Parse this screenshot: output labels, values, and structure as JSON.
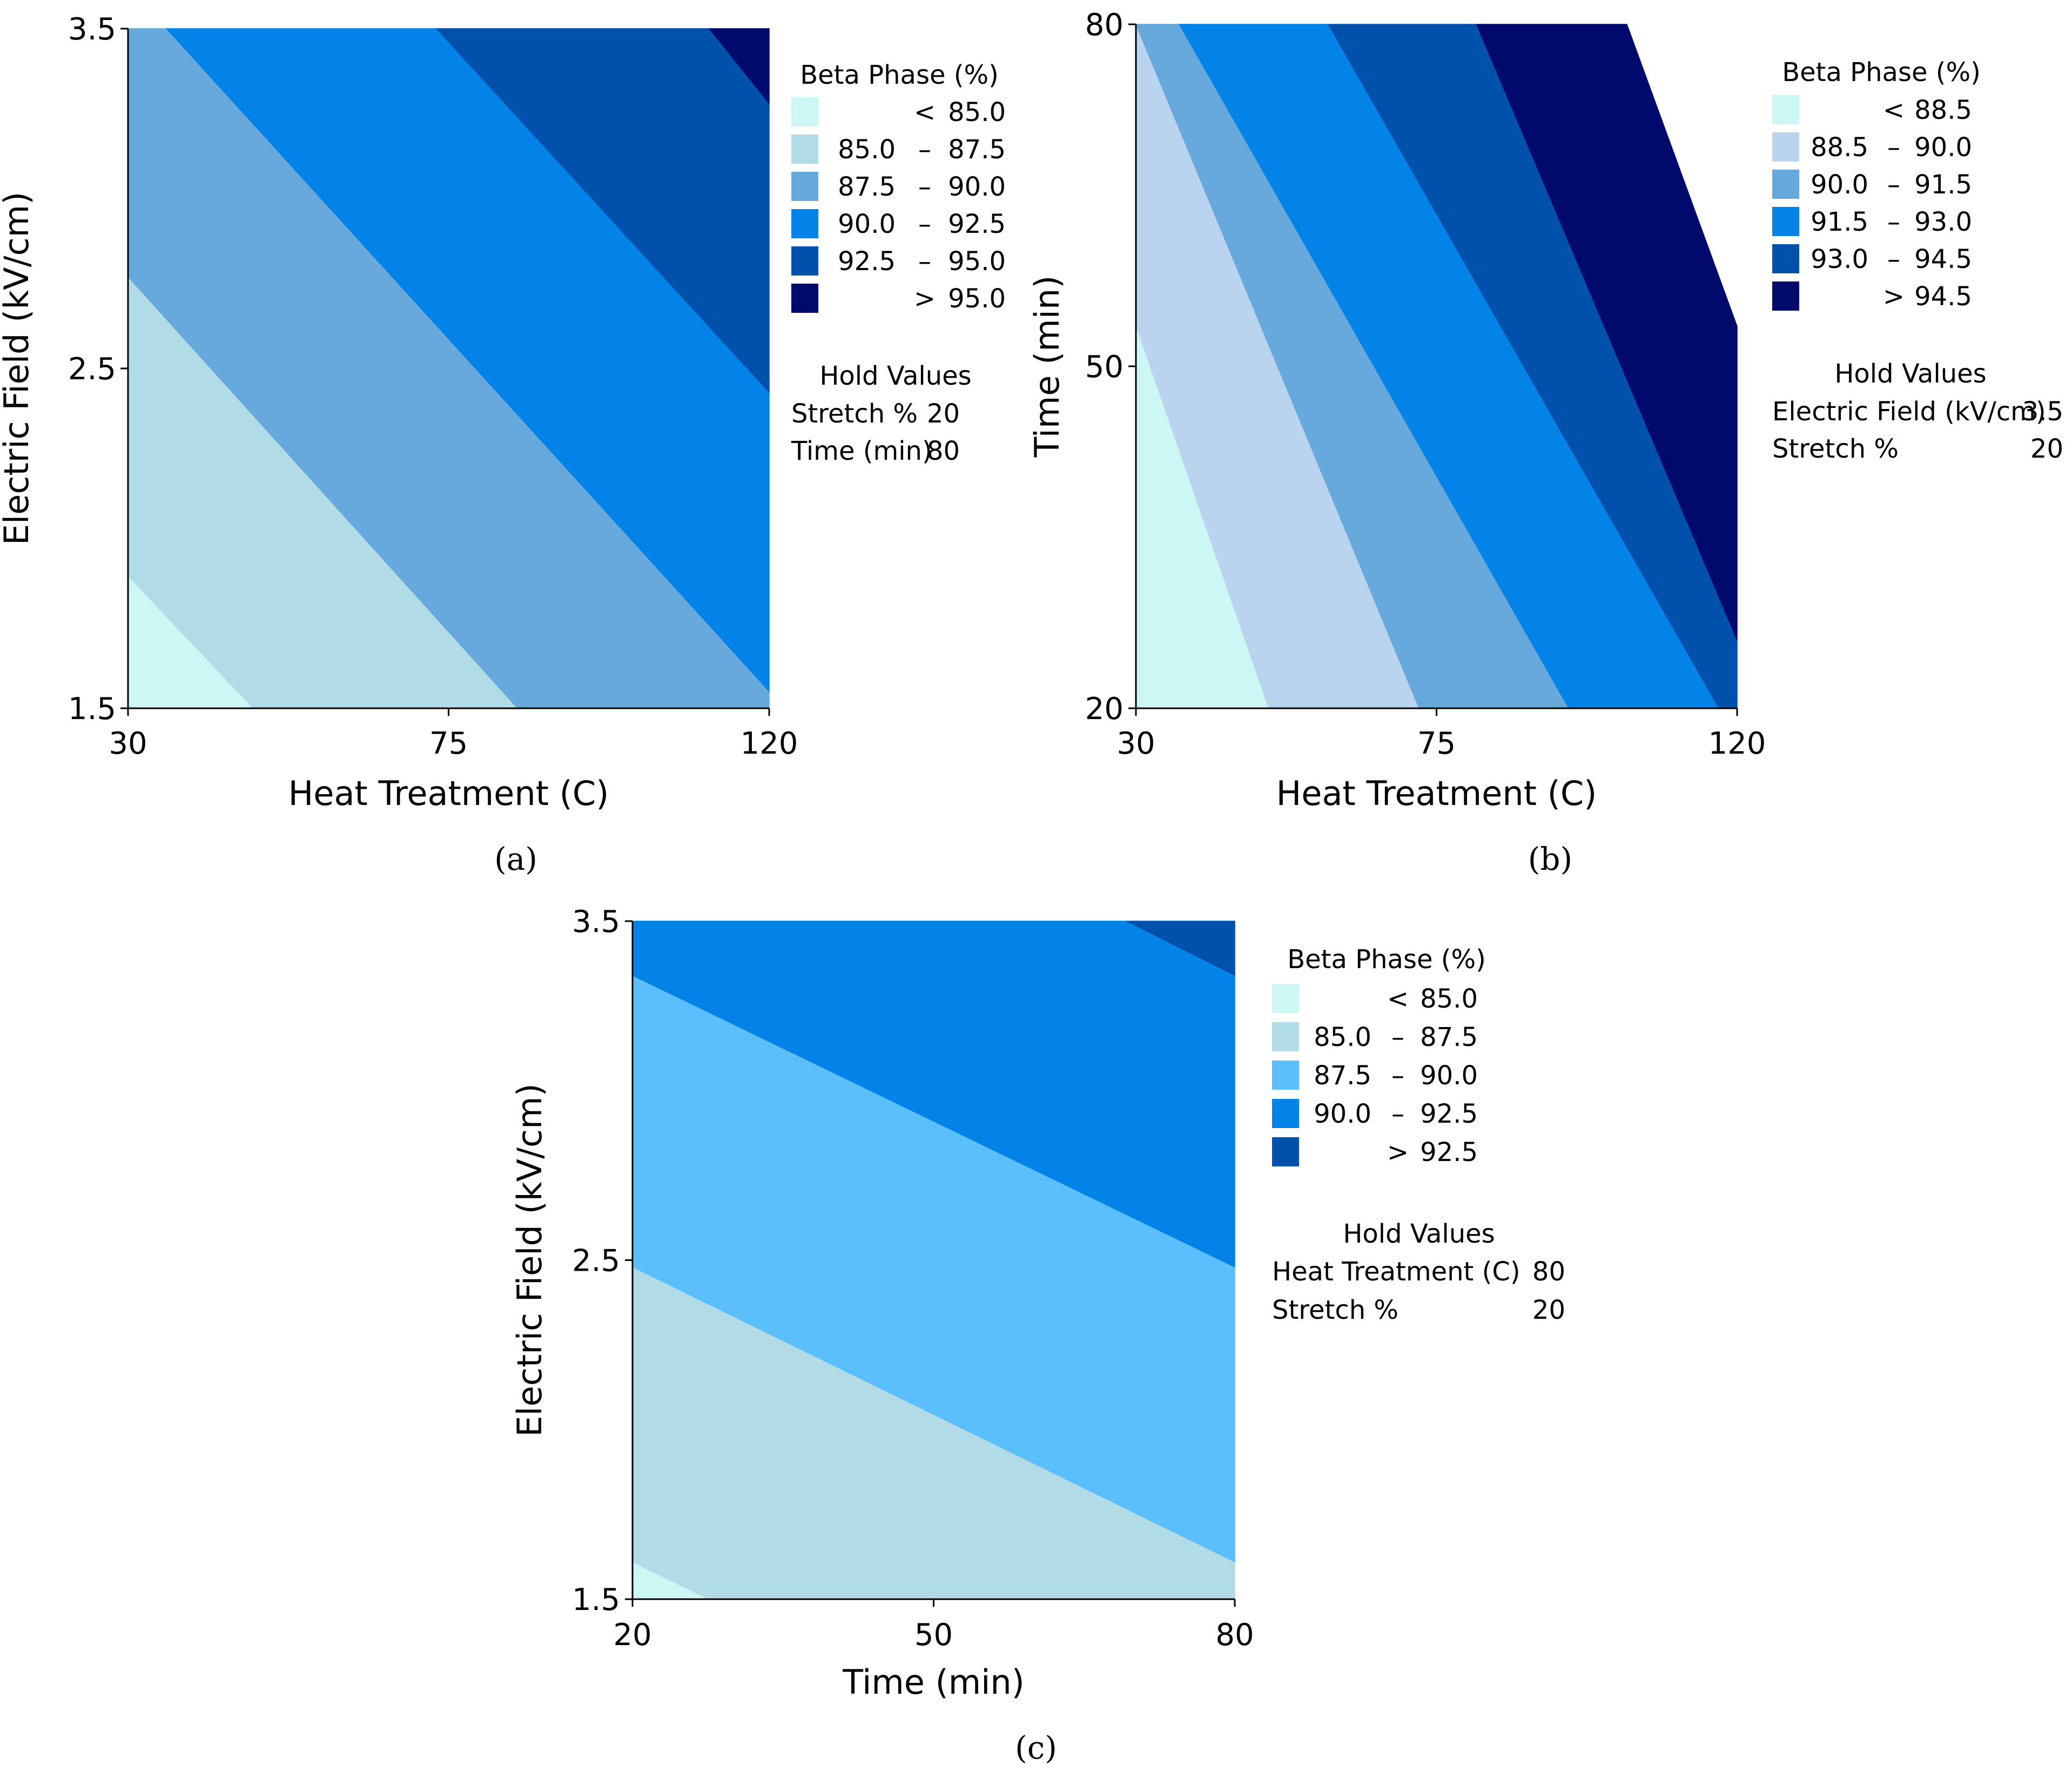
{
  "chart_data": [
    {
      "type": "contour",
      "panel_label": "(a)",
      "xlabel": "Heat Treatment (C)",
      "ylabel": "Electric Field (kV/cm)",
      "xlim": [
        30,
        120
      ],
      "ylim": [
        1.5,
        3.5
      ],
      "xticks": [
        "30",
        "75",
        "120"
      ],
      "yticks": [
        "1.5",
        "2.5",
        "3.5"
      ],
      "legend": {
        "title": "Beta Phase (%)",
        "entries": [
          {
            "op": "<",
            "low": "",
            "high": "85.0",
            "color": "#ccf7f5"
          },
          {
            "op": "–",
            "low": "85.0",
            "high": "87.5",
            "color": "#b0dbe7"
          },
          {
            "op": "–",
            "low": "87.5",
            "high": "90.0",
            "color": "#67a9dc"
          },
          {
            "op": "–",
            "low": "90.0",
            "high": "92.5",
            "color": "#0383e7"
          },
          {
            "op": "–",
            "low": "92.5",
            "high": "95.0",
            "color": "#0051ab"
          },
          {
            "op": ">",
            "low": "",
            "high": "95.0",
            "color": "#000a6d"
          }
        ]
      },
      "hold_values": {
        "title": "Hold Values",
        "items": [
          {
            "name": "Stretch %",
            "value": "20"
          },
          {
            "name": "Time (min)",
            "value": "80"
          }
        ]
      },
      "contour_lines": [
        {
          "level": "85.0",
          "from": [
            30,
            1.89
          ],
          "to": [
            47.6,
            1.5
          ]
        },
        {
          "level": "87.5",
          "from": [
            30,
            2.77
          ],
          "to": [
            84.7,
            1.5
          ]
        },
        {
          "level": "90.0",
          "from": [
            35.4,
            3.5
          ],
          "to": [
            120,
            1.55
          ]
        },
        {
          "level": "92.5",
          "from": [
            73.3,
            3.5
          ],
          "to": [
            120,
            2.43
          ]
        },
        {
          "level": "95.0",
          "from": [
            111.6,
            3.5
          ],
          "to": [
            120,
            3.28
          ]
        }
      ]
    },
    {
      "type": "contour",
      "panel_label": "(b)",
      "xlabel": "Heat Treatment (C)",
      "ylabel": "Time (min)",
      "xlim": [
        30,
        120
      ],
      "ylim": [
        20,
        80
      ],
      "xticks": [
        "30",
        "75",
        "120"
      ],
      "yticks": [
        "20",
        "50",
        "80"
      ],
      "legend": {
        "title": "Beta Phase (%)",
        "entries": [
          {
            "op": "<",
            "low": "",
            "high": "88.5",
            "color": "#ccf7f5"
          },
          {
            "op": "–",
            "low": "88.5",
            "high": "90.0",
            "color": "#bad3ee"
          },
          {
            "op": "–",
            "low": "90.0",
            "high": "91.5",
            "color": "#67a9dc"
          },
          {
            "op": "–",
            "low": "91.5",
            "high": "93.0",
            "color": "#0383e7"
          },
          {
            "op": "–",
            "low": "93.0",
            "high": "94.5",
            "color": "#0051ab"
          },
          {
            "op": ">",
            "low": "",
            "high": "94.5",
            "color": "#000a6d"
          }
        ]
      },
      "hold_values": {
        "title": "Hold Values",
        "items": [
          {
            "name": "Electric Field (kV/cm)",
            "value": "3.5"
          },
          {
            "name": "Stretch %",
            "value": "20"
          }
        ]
      },
      "contour_lines": [
        {
          "level": "88.5",
          "from": [
            30,
            53.6
          ],
          "to": [
            49.9,
            20
          ]
        },
        {
          "level": "90.0",
          "from": [
            30,
            80
          ],
          "to": [
            72.4,
            20
          ]
        },
        {
          "level": "91.5",
          "from": [
            36.5,
            80
          ],
          "to": [
            94.8,
            20
          ]
        },
        {
          "level": "93.0",
          "from": [
            58.8,
            80
          ],
          "to": [
            117.3,
            20
          ]
        },
        {
          "level": "94.5",
          "from": [
            81.0,
            80
          ],
          "to": [
            120,
            26.0
          ]
        },
        {
          "level": "96.0",
          "from": [
            103.5,
            80
          ],
          "to": [
            120,
            53.5
          ]
        }
      ]
    },
    {
      "type": "contour",
      "panel_label": "(c)",
      "xlabel": "Time (min)",
      "ylabel": "Electric Field (kV/cm)",
      "xlim": [
        20,
        80
      ],
      "ylim": [
        1.5,
        3.5
      ],
      "xticks": [
        "20",
        "50",
        "80"
      ],
      "yticks": [
        "1.5",
        "2.5",
        "3.5"
      ],
      "legend": {
        "title": "Beta Phase (%)",
        "entries": [
          {
            "op": "<",
            "low": "",
            "high": "85.0",
            "color": "#ccf7f5"
          },
          {
            "op": "–",
            "low": "85.0",
            "high": "87.5",
            "color": "#b0dbe7"
          },
          {
            "op": "–",
            "low": "87.5",
            "high": "90.0",
            "color": "#5bbffe"
          },
          {
            "op": "–",
            "low": "90.0",
            "high": "92.5",
            "color": "#0383e7"
          },
          {
            "op": ">",
            "low": "",
            "high": "92.5",
            "color": "#0051ab"
          }
        ]
      },
      "hold_values": {
        "title": "Hold Values",
        "items": [
          {
            "name": "Heat Treatment (C)",
            "value": "80"
          },
          {
            "name": "Stretch %",
            "value": "20"
          }
        ]
      },
      "contour_lines": [
        {
          "level": "85.0",
          "from": [
            20,
            1.61
          ],
          "to": [
            27.6,
            1.5
          ]
        },
        {
          "level": "87.5",
          "from": [
            20,
            2.48
          ],
          "to": [
            80,
            1.61
          ]
        },
        {
          "level": "90.0",
          "from": [
            20,
            3.34
          ],
          "to": [
            80,
            2.48
          ]
        },
        {
          "level": "92.5",
          "from": [
            69.2,
            3.5
          ],
          "to": [
            80,
            3.34
          ]
        }
      ]
    }
  ]
}
